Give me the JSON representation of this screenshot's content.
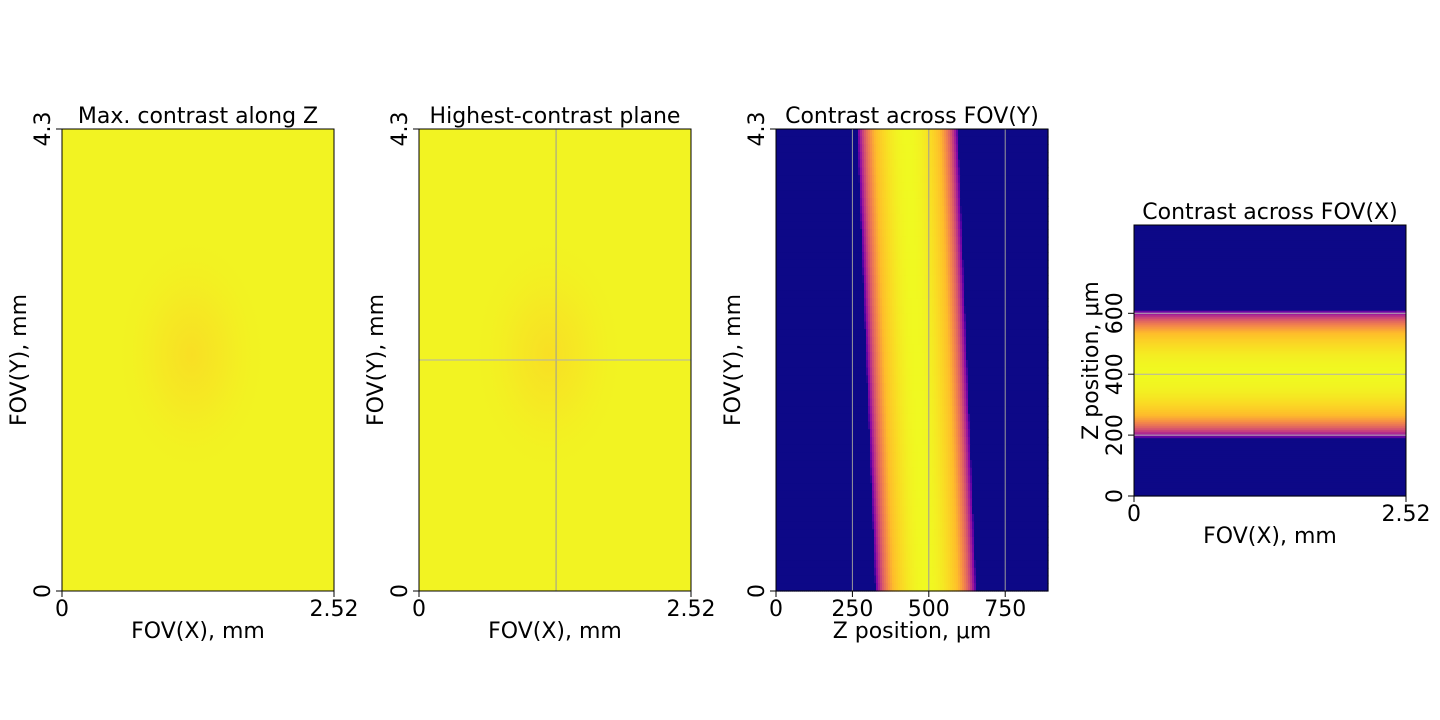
{
  "chart_data": [
    {
      "type": "heatmap",
      "title": "Max. contrast along Z",
      "xlabel": "FOV(X), mm",
      "ylabel": "FOV(Y), mm",
      "xlim": [
        0,
        2.52
      ],
      "ylim": [
        0,
        4.3
      ],
      "x_ticks": [
        {
          "v": 0,
          "t": "0"
        },
        {
          "v": 2.52,
          "t": "2.52"
        }
      ],
      "y_ticks": [
        {
          "v": 0,
          "t": "0"
        },
        {
          "v": 4.3,
          "t": "4.3"
        }
      ],
      "colormap": "plasma",
      "description_values": {
        "uniform_contrast": 0.95,
        "center_dip": [
          1.2,
          2.2
        ]
      },
      "guide_lines": {
        "vertical": [],
        "horizontal": []
      }
    },
    {
      "type": "heatmap",
      "title": "Highest-contrast plane",
      "xlabel": "FOV(X), mm",
      "ylabel": "FOV(Y), mm",
      "xlim": [
        0,
        2.52
      ],
      "ylim": [
        0,
        4.3
      ],
      "x_ticks": [
        {
          "v": 0,
          "t": "0"
        },
        {
          "v": 2.52,
          "t": "2.52"
        }
      ],
      "y_ticks": [
        {
          "v": 0,
          "t": "0"
        },
        {
          "v": 4.3,
          "t": "4.3"
        }
      ],
      "colormap": "plasma",
      "description_values": {
        "uniform_contrast": 0.95,
        "center_dip": [
          1.2,
          2.2
        ]
      },
      "guide_lines": {
        "vertical": [
          1.27
        ],
        "horizontal": [
          2.15
        ]
      }
    },
    {
      "type": "heatmap",
      "title": "Contrast across FOV(Y)",
      "xlabel": "Z position, μm",
      "ylabel": "FOV(Y), mm",
      "xlim": [
        0,
        890
      ],
      "ylim": [
        0,
        4.3
      ],
      "x_ticks": [
        {
          "v": 0,
          "t": "0"
        },
        {
          "v": 250,
          "t": "250"
        },
        {
          "v": 500,
          "t": "500"
        },
        {
          "v": 750,
          "t": "750"
        }
      ],
      "y_ticks": [
        {
          "v": 0,
          "t": "0"
        },
        {
          "v": 4.3,
          "t": "4.3"
        }
      ],
      "colormap": "plasma",
      "band": {
        "center_at_ymax": 430,
        "center_at_ymin": 490,
        "half_width": 165
      },
      "guide_lines": {
        "vertical": [
          250,
          500,
          750
        ],
        "horizontal": []
      }
    },
    {
      "type": "heatmap",
      "title": "Contrast across FOV(X)",
      "xlabel": "FOV(X), mm",
      "ylabel": "Z position, μm",
      "xlim": [
        0,
        2.52
      ],
      "ylim": [
        0,
        890
      ],
      "x_ticks": [
        {
          "v": 0,
          "t": "0"
        },
        {
          "v": 2.52,
          "t": "2.52"
        }
      ],
      "y_ticks": [
        {
          "v": 0,
          "t": "0"
        },
        {
          "v": 200,
          "t": "200"
        },
        {
          "v": 400,
          "t": "400"
        },
        {
          "v": 600,
          "t": "600"
        }
      ],
      "colormap": "plasma",
      "band": {
        "center": 400,
        "half_width": 210
      },
      "guide_lines": {
        "vertical": [],
        "horizontal": [
          200,
          400,
          600
        ]
      }
    }
  ]
}
